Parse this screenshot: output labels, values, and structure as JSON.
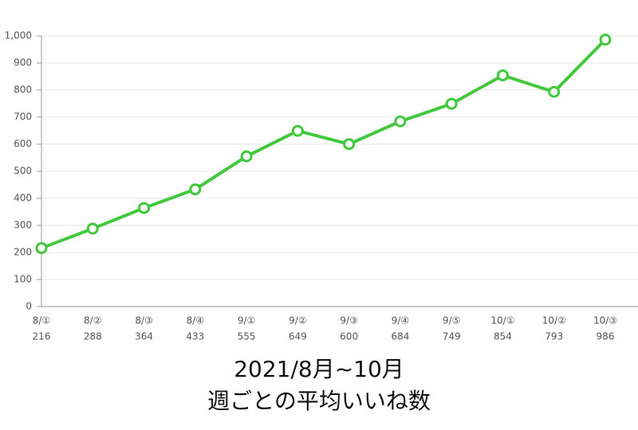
{
  "chart_data": {
    "type": "line",
    "title": "2021/8月~10月",
    "subtitle": "週ごとの平均いいね数",
    "categories": [
      "8/①",
      "8/②",
      "8/③",
      "8/④",
      "9/①",
      "9/②",
      "9/③",
      "9/④",
      "9/⑤",
      "10/①",
      "10/②",
      "10/③"
    ],
    "values": [
      216,
      288,
      364,
      433,
      555,
      649,
      600,
      684,
      749,
      854,
      793,
      986
    ],
    "color": "#41c83c",
    "ylim": [
      0,
      1000
    ],
    "yticks": [
      0,
      100,
      200,
      300,
      400,
      500,
      600,
      700,
      800,
      900,
      {
        "value": 1000,
        "label": "1,000"
      }
    ],
    "grid": true
  }
}
